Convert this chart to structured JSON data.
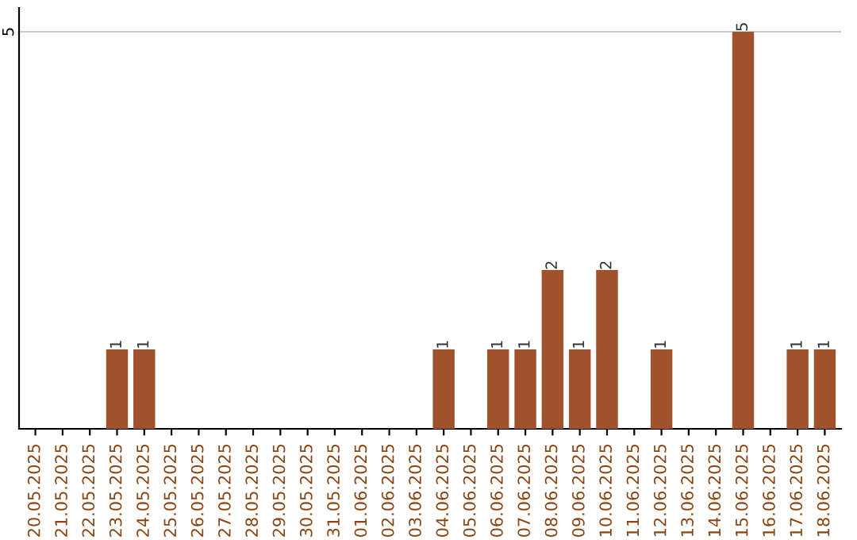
{
  "chart_data": {
    "type": "bar",
    "categories": [
      "20.05.2025",
      "21.05.2025",
      "22.05.2025",
      "23.05.2025",
      "24.05.2025",
      "25.05.2025",
      "26.05.2025",
      "27.05.2025",
      "28.05.2025",
      "29.05.2025",
      "30.05.2025",
      "31.05.2025",
      "01.06.2025",
      "02.06.2025",
      "03.06.2025",
      "04.06.2025",
      "05.06.2025",
      "06.06.2025",
      "07.06.2025",
      "08.06.2025",
      "09.06.2025",
      "10.06.2025",
      "11.06.2025",
      "12.06.2025",
      "13.06.2025",
      "14.06.2025",
      "15.06.2025",
      "16.06.2025",
      "17.06.2025",
      "18.06.2025"
    ],
    "values": [
      0,
      0,
      0,
      1,
      1,
      0,
      0,
      0,
      0,
      0,
      0,
      0,
      0,
      0,
      0,
      1,
      0,
      1,
      1,
      2,
      1,
      2,
      0,
      1,
      0,
      0,
      5,
      0,
      1,
      1
    ],
    "value_labels": [
      null,
      null,
      null,
      "1",
      "1",
      null,
      null,
      null,
      null,
      null,
      null,
      null,
      null,
      null,
      null,
      "1",
      null,
      "1",
      "1",
      "2",
      "1",
      "2",
      null,
      "1",
      null,
      null,
      "5",
      null,
      "1",
      "1"
    ],
    "color": "#a0522d",
    "ylim": [
      0,
      5.3
    ],
    "yticks": [
      5
    ],
    "grid": "y"
  }
}
